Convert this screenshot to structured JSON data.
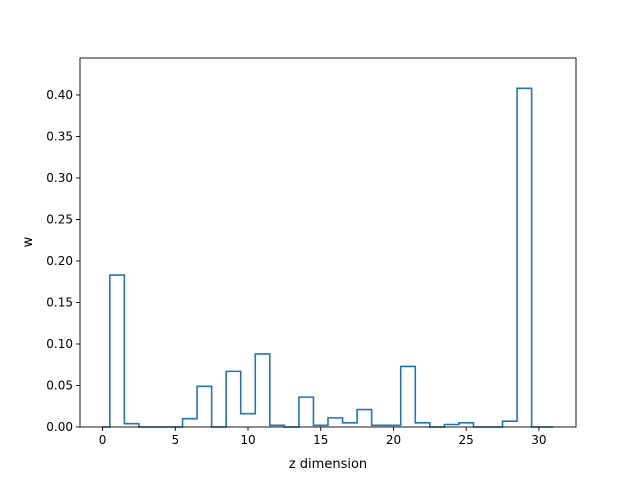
{
  "chart_data": {
    "type": "step",
    "title": "",
    "xlabel": "z dimension",
    "ylabel": "w",
    "xlim": [
      -1.55,
      32.55
    ],
    "ylim": [
      0,
      0.4445
    ],
    "xticks": [
      0,
      5,
      10,
      15,
      20,
      25,
      30
    ],
    "yticks": [
      0.0,
      0.05,
      0.1,
      0.15,
      0.2,
      0.25,
      0.3,
      0.35,
      0.4
    ],
    "x": [
      0,
      1,
      2,
      3,
      4,
      5,
      6,
      7,
      8,
      9,
      10,
      11,
      12,
      13,
      14,
      15,
      16,
      17,
      18,
      19,
      20,
      21,
      22,
      23,
      24,
      25,
      26,
      27,
      28,
      29,
      30,
      31
    ],
    "values": [
      0.0,
      0.183,
      0.004,
      0.0,
      0.0,
      0.0,
      0.01,
      0.049,
      0.0,
      0.067,
      0.016,
      0.088,
      0.002,
      0.0,
      0.036,
      0.002,
      0.011,
      0.005,
      0.021,
      0.002,
      0.002,
      0.073,
      0.005,
      0.0,
      0.003,
      0.005,
      0.0,
      0.0,
      0.007,
      0.408,
      0.0,
      0.0
    ],
    "step_where": "mid",
    "color": "#1f77b4",
    "grid": false,
    "legend": "none"
  }
}
